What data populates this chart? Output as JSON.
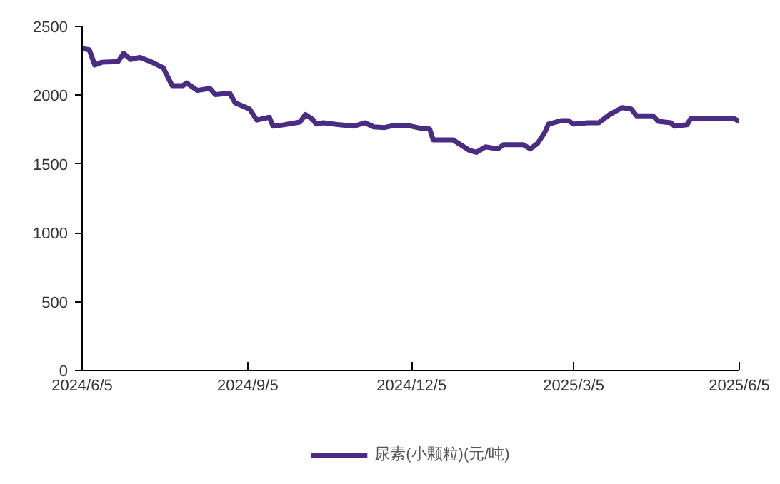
{
  "chart_data": {
    "type": "line",
    "x": [
      "2024-06-05",
      "2024-06-09",
      "2024-06-12",
      "2024-06-16",
      "2024-06-25",
      "2024-06-28",
      "2024-07-02",
      "2024-07-07",
      "2024-07-13",
      "2024-07-20",
      "2024-07-25",
      "2024-07-31",
      "2024-08-02",
      "2024-08-08",
      "2024-08-15",
      "2024-08-18",
      "2024-08-26",
      "2024-08-29",
      "2024-09-06",
      "2024-09-10",
      "2024-09-17",
      "2024-09-19",
      "2024-09-25",
      "2024-10-04",
      "2024-10-07",
      "2024-10-11",
      "2024-10-13",
      "2024-10-17",
      "2024-10-26",
      "2024-11-03",
      "2024-11-09",
      "2024-11-14",
      "2024-11-20",
      "2024-11-25",
      "2024-12-03",
      "2024-12-10",
      "2024-12-15",
      "2024-12-17",
      "2024-12-28",
      "2025-01-06",
      "2025-01-10",
      "2025-01-15",
      "2025-01-22",
      "2025-01-25",
      "2025-02-05",
      "2025-02-09",
      "2025-02-13",
      "2025-02-17",
      "2025-02-19",
      "2025-02-26",
      "2025-03-02",
      "2025-03-05",
      "2025-03-13",
      "2025-03-19",
      "2025-03-25",
      "2025-04-01",
      "2025-04-06",
      "2025-04-09",
      "2025-04-18",
      "2025-04-21",
      "2025-04-28",
      "2025-04-30",
      "2025-05-07",
      "2025-05-09",
      "2025-05-18",
      "2025-06-02",
      "2025-06-05"
    ],
    "series": [
      {
        "name": "尿素(小颗粒)(元/吨)",
        "color": "#4b2c84",
        "values": [
          2340,
          2330,
          2220,
          2240,
          2245,
          2305,
          2260,
          2275,
          2245,
          2200,
          2070,
          2070,
          2090,
          2035,
          2050,
          2005,
          2015,
          1945,
          1900,
          1820,
          1840,
          1775,
          1785,
          1805,
          1860,
          1825,
          1790,
          1800,
          1785,
          1775,
          1800,
          1770,
          1765,
          1780,
          1780,
          1760,
          1755,
          1675,
          1675,
          1600,
          1585,
          1625,
          1610,
          1640,
          1640,
          1610,
          1650,
          1730,
          1790,
          1815,
          1815,
          1790,
          1800,
          1800,
          1860,
          1910,
          1900,
          1850,
          1850,
          1810,
          1800,
          1775,
          1785,
          1830,
          1830,
          1830,
          1810
        ]
      }
    ],
    "xlim": [
      "2024-06-05",
      "2025-06-05"
    ],
    "xticks": [
      {
        "value": "2024-06-05",
        "label": "2024/6/5"
      },
      {
        "value": "2024-09-05",
        "label": "2024/9/5"
      },
      {
        "value": "2024-12-05",
        "label": "2024/12/5"
      },
      {
        "value": "2025-03-05",
        "label": "2025/3/5"
      },
      {
        "value": "2025-06-05",
        "label": "2025/6/5"
      }
    ],
    "ylim": [
      0,
      2500
    ],
    "yticks": [
      0,
      500,
      1000,
      1500,
      2000,
      2500
    ],
    "legend": "bottom"
  }
}
